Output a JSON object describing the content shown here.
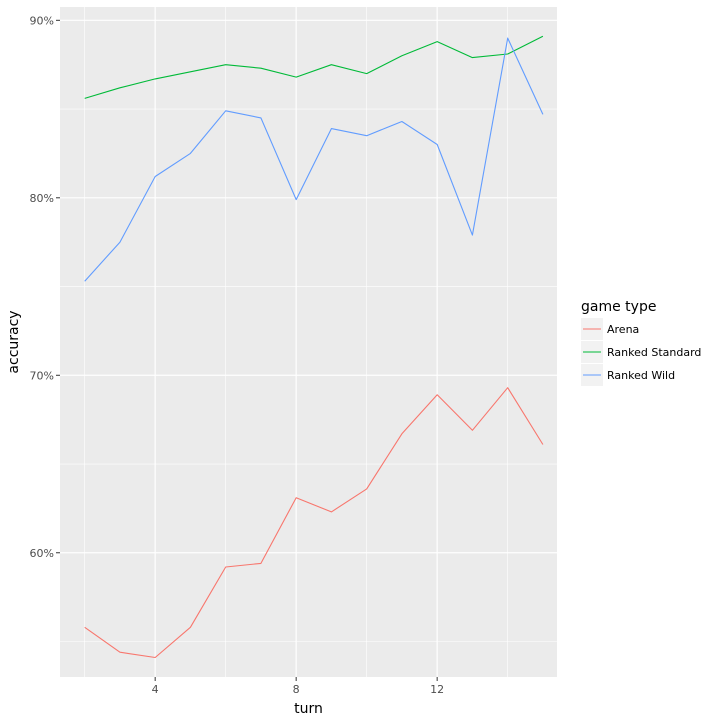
{
  "chart_data": {
    "type": "line",
    "xlabel": "turn",
    "ylabel": "accuracy",
    "x": [
      2,
      3,
      4,
      5,
      6,
      7,
      8,
      9,
      10,
      11,
      12,
      13,
      14,
      15
    ],
    "xlim": [
      1.3,
      15.4
    ],
    "ylim": [
      0.53,
      0.9075
    ],
    "x_ticks": [
      4,
      8,
      12
    ],
    "x_tick_labels": [
      "4",
      "8",
      "12"
    ],
    "y_ticks": [
      0.6,
      0.7,
      0.8,
      0.9
    ],
    "y_tick_labels": [
      "60%",
      "70%",
      "80%",
      "90%"
    ],
    "grid": true,
    "background": "#ebebeb",
    "legend": {
      "title": "game type",
      "placement": "right"
    },
    "series": [
      {
        "name": "Arena",
        "color": "#f8766d",
        "values": [
          0.558,
          0.544,
          0.541,
          0.558,
          0.592,
          0.594,
          0.631,
          0.623,
          0.636,
          0.667,
          0.689,
          0.669,
          0.693,
          0.661
        ]
      },
      {
        "name": "Ranked Standard",
        "color": "#00ba38",
        "values": [
          0.856,
          0.862,
          0.867,
          0.871,
          0.875,
          0.873,
          0.868,
          0.875,
          0.87,
          0.88,
          0.888,
          0.879,
          0.881,
          0.891
        ]
      },
      {
        "name": "Ranked Wild",
        "color": "#619cff",
        "values": [
          0.753,
          0.775,
          0.812,
          0.825,
          0.849,
          0.845,
          0.799,
          0.839,
          0.835,
          0.843,
          0.83,
          0.779,
          0.89,
          0.847
        ]
      }
    ]
  }
}
